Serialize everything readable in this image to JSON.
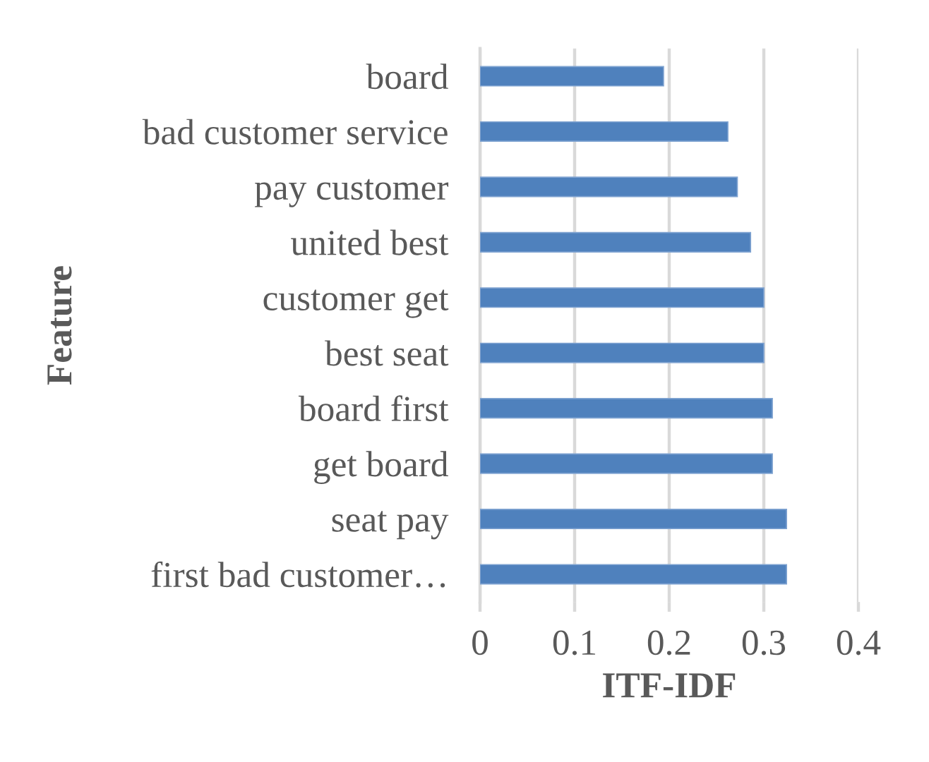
{
  "chart_data": {
    "type": "bar",
    "orientation": "horizontal",
    "categories": [
      "board",
      "bad customer service",
      "pay customer",
      "united best",
      "customer get",
      "best seat",
      "board first",
      "get board",
      "seat pay",
      "first bad customer…"
    ],
    "values": [
      0.194,
      0.262,
      0.272,
      0.286,
      0.3,
      0.3,
      0.309,
      0.309,
      0.324,
      0.324
    ],
    "color": "#4f81bd",
    "xlabel": "ITF-IDF",
    "ylabel": "Feature",
    "xlim": [
      0,
      0.4
    ],
    "xticks": [
      0,
      0.1,
      0.2,
      0.3,
      0.4
    ],
    "grid": "x"
  }
}
